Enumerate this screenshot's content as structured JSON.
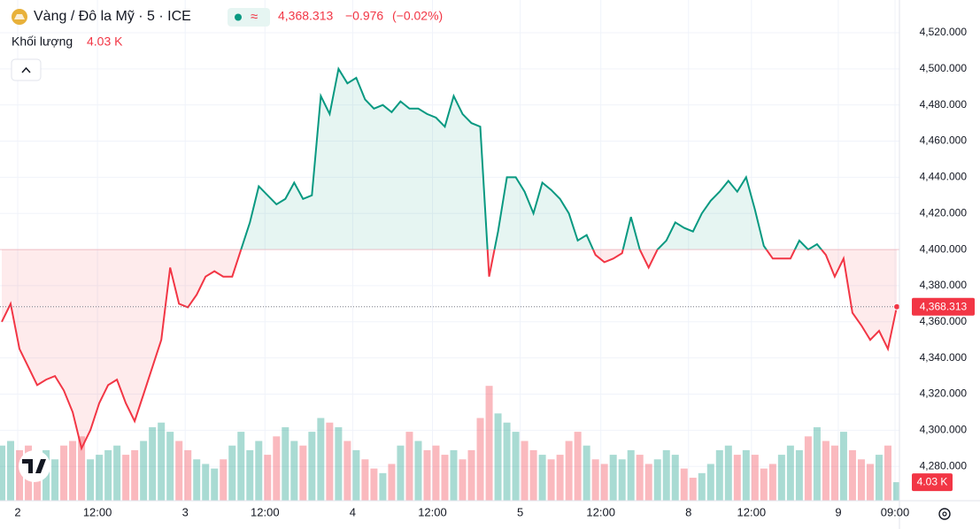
{
  "chart_data": {
    "type": "baseline",
    "title": "Vàng / Đô la Mỹ · 5 · ICE",
    "header": {
      "price": 4368.313,
      "price_label": "4,368.313",
      "change": -0.976,
      "change_label": "−0.976",
      "change_pct": -0.02,
      "change_pct_label": "(−0.02%)"
    },
    "baseline": 4400,
    "up_color": "#089981",
    "down_color": "#f23645",
    "series": [
      {
        "name": "Vàng / Đô la Mỹ",
        "values": [
          4360,
          4370,
          4345,
          4335,
          4325,
          4328,
          4330,
          4322,
          4310,
          4290,
          4300,
          4315,
          4325,
          4328,
          4315,
          4305,
          4320,
          4335,
          4350,
          4390,
          4370,
          4368,
          4375,
          4385,
          4388,
          4385,
          4385,
          4400,
          4415,
          4435,
          4430,
          4425,
          4428,
          4437,
          4428,
          4430,
          4485,
          4475,
          4500,
          4492,
          4495,
          4483,
          4478,
          4480,
          4476,
          4482,
          4478,
          4478,
          4475,
          4473,
          4468,
          4485,
          4475,
          4470,
          4468,
          4385,
          4410,
          4440,
          4440,
          4432,
          4420,
          4437,
          4433,
          4428,
          4420,
          4405,
          4408,
          4397,
          4393,
          4395,
          4398,
          4418,
          4400,
          4390,
          4400,
          4405,
          4415,
          4412,
          4410,
          4420,
          4427,
          4432,
          4438,
          4432,
          4440,
          4422,
          4402,
          4395,
          4395,
          4395,
          4405,
          4400,
          4403,
          4397,
          4385,
          4395,
          4365,
          4358,
          4350,
          4355,
          4345,
          4368.313
        ]
      }
    ],
    "volume": {
      "name": "Khối lượng",
      "last_label": "4.03 K",
      "values": [
        12,
        13,
        11,
        12,
        10,
        11,
        9,
        12,
        13,
        14,
        9,
        10,
        11,
        12,
        10,
        11,
        13,
        16,
        17,
        15,
        13,
        11,
        9,
        8,
        7,
        9,
        12,
        15,
        11,
        13,
        10,
        14,
        16,
        13,
        12,
        15,
        18,
        17,
        16,
        13,
        11,
        9,
        7,
        6,
        8,
        12,
        15,
        13,
        11,
        12,
        10,
        11,
        9,
        11,
        18,
        25,
        19,
        17,
        15,
        13,
        11,
        10,
        9,
        10,
        13,
        15,
        12,
        9,
        8,
        10,
        9,
        11,
        10,
        8,
        9,
        11,
        10,
        7,
        5,
        6,
        8,
        11,
        12,
        10,
        11,
        10,
        7,
        8,
        10,
        12,
        11,
        14,
        16,
        13,
        12,
        15,
        11,
        9,
        8,
        10,
        12,
        4.03
      ],
      "vlim": [
        0,
        109
      ]
    },
    "xlim": [
      -0.2,
      101.3
    ],
    "ylim": [
      4261,
      4538.1
    ],
    "xticks": [
      {
        "value": 1.8,
        "label": "2"
      },
      {
        "value": 10.8,
        "label": "12:00"
      },
      {
        "value": 20.7,
        "label": "3"
      },
      {
        "value": 29.7,
        "label": "12:00"
      },
      {
        "value": 39.6,
        "label": "4"
      },
      {
        "value": 48.6,
        "label": "12:00"
      },
      {
        "value": 58.5,
        "label": "5"
      },
      {
        "value": 67.6,
        "label": "12:00"
      },
      {
        "value": 77.5,
        "label": "8"
      },
      {
        "value": 84.6,
        "label": "12:00"
      },
      {
        "value": 94.4,
        "label": "9"
      },
      {
        "value": 100.8,
        "label": "09:00"
      }
    ],
    "yticks": [
      {
        "value": 4280,
        "label": "4,280.000"
      },
      {
        "value": 4300,
        "label": "4,300.000"
      },
      {
        "value": 4320,
        "label": "4,320.000"
      },
      {
        "value": 4340,
        "label": "4,340.000"
      },
      {
        "value": 4360,
        "label": "4,360.000"
      },
      {
        "value": 4380,
        "label": "4,380.000"
      },
      {
        "value": 4400,
        "label": "4,400.000"
      },
      {
        "value": 4420,
        "label": "4,420.000"
      },
      {
        "value": 4440,
        "label": "4,440.000"
      },
      {
        "value": 4460,
        "label": "4,460.000"
      },
      {
        "value": 4480,
        "label": "4,480.000"
      },
      {
        "value": 4500,
        "label": "4,500.000"
      },
      {
        "value": 4520,
        "label": "4,520.000"
      }
    ],
    "grid": true
  }
}
